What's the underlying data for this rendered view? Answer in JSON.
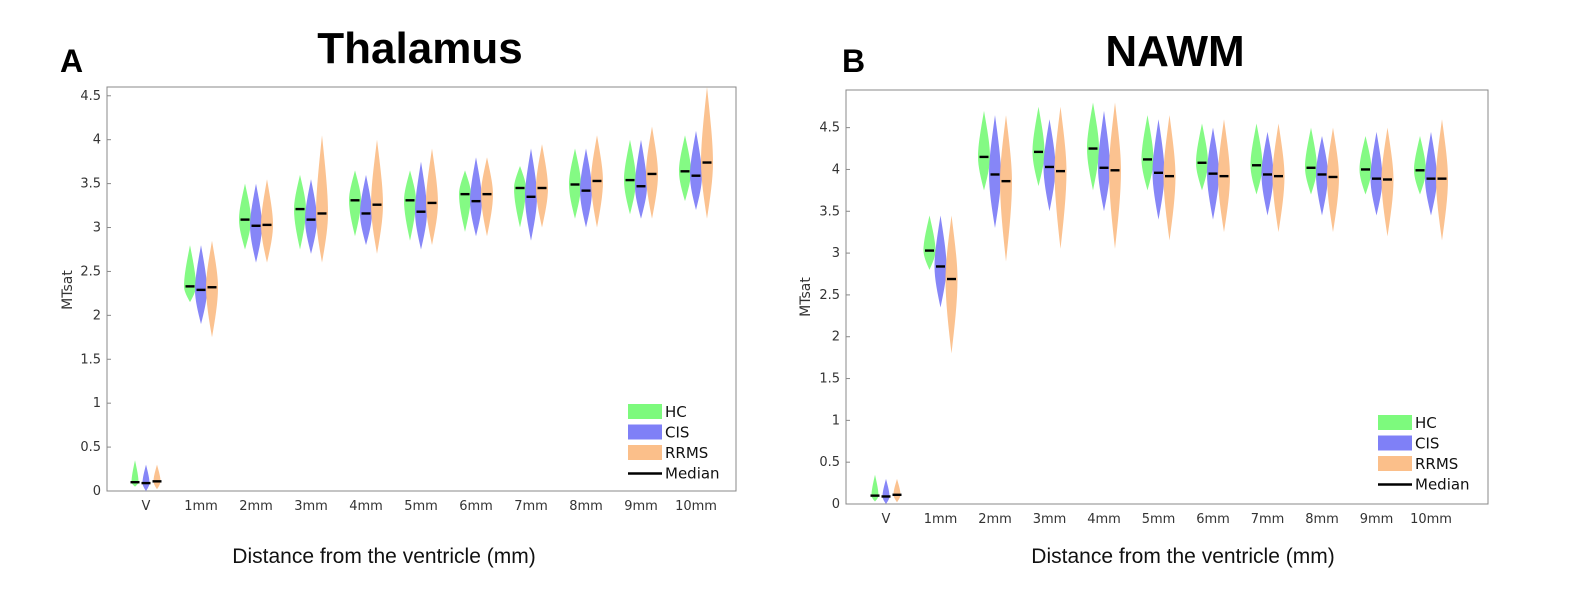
{
  "colors": {
    "HC": "#7dfa7d",
    "CIS": "#7f80f7",
    "RRMS": "#fbbf8a",
    "median": "#000000",
    "axis": "#888888"
  },
  "chart_data": [
    {
      "panel_letter": "A",
      "type": "violin",
      "title": "Thalamus",
      "xlabel": "Distance from the ventricle (mm)",
      "ylabel": "MTsat",
      "ylim": [
        0,
        4.6
      ],
      "yticks": [
        "0",
        "0.5",
        "1",
        "1.5",
        "2",
        "2.5",
        "3",
        "3.5",
        "4",
        "4.5"
      ],
      "categories": [
        "V",
        "1mm",
        "2mm",
        "3mm",
        "4mm",
        "5mm",
        "6mm",
        "7mm",
        "8mm",
        "9mm",
        "10mm"
      ],
      "legend": {
        "position": "bottom-right",
        "entries": [
          "HC",
          "CIS",
          "RRMS",
          "Median"
        ]
      },
      "series": [
        {
          "name": "HC",
          "median": [
            0.1,
            2.33,
            3.09,
            3.21,
            3.31,
            3.31,
            3.38,
            3.45,
            3.49,
            3.54,
            3.64
          ],
          "min": [
            0.05,
            2.15,
            2.75,
            2.75,
            2.9,
            2.85,
            2.95,
            3.0,
            3.1,
            3.15,
            3.3
          ],
          "max": [
            0.35,
            2.8,
            3.5,
            3.6,
            3.65,
            3.65,
            3.65,
            3.7,
            3.9,
            4.0,
            4.05
          ]
        },
        {
          "name": "CIS",
          "median": [
            0.09,
            2.29,
            3.02,
            3.09,
            3.16,
            3.18,
            3.3,
            3.35,
            3.42,
            3.47,
            3.59
          ],
          "min": [
            0.0,
            1.9,
            2.6,
            2.7,
            2.8,
            2.75,
            2.9,
            2.85,
            3.0,
            3.1,
            3.2
          ],
          "max": [
            0.3,
            2.8,
            3.5,
            3.55,
            3.6,
            3.75,
            3.8,
            3.9,
            3.9,
            4.0,
            4.1
          ]
        },
        {
          "name": "RRMS",
          "median": [
            0.11,
            2.32,
            3.03,
            3.16,
            3.26,
            3.28,
            3.38,
            3.45,
            3.53,
            3.61,
            3.74
          ],
          "min": [
            0.02,
            1.75,
            2.6,
            2.6,
            2.7,
            2.8,
            2.9,
            3.0,
            3.0,
            3.1,
            3.1
          ],
          "max": [
            0.3,
            2.85,
            3.55,
            4.05,
            4.0,
            3.9,
            3.8,
            3.95,
            4.05,
            4.15,
            4.6
          ]
        }
      ]
    },
    {
      "panel_letter": "B",
      "type": "violin",
      "title": "NAWM",
      "xlabel": "Distance from the ventricle (mm)",
      "ylabel": "MTsat",
      "ylim": [
        0,
        4.95
      ],
      "yticks": [
        "0",
        "0.5",
        "1",
        "1.5",
        "2",
        "2.5",
        "3",
        "3.5",
        "4",
        "4.5"
      ],
      "categories": [
        "V",
        "1mm",
        "2mm",
        "3mm",
        "4mm",
        "5mm",
        "6mm",
        "7mm",
        "8mm",
        "9mm",
        "10mm"
      ],
      "legend": {
        "position": "bottom-right",
        "entries": [
          "HC",
          "CIS",
          "RRMS",
          "Median"
        ]
      },
      "series": [
        {
          "name": "HC",
          "median": [
            0.1,
            3.03,
            4.15,
            4.21,
            4.25,
            4.12,
            4.08,
            4.05,
            4.02,
            4.0,
            3.99
          ],
          "min": [
            0.03,
            2.8,
            3.75,
            3.8,
            3.75,
            3.75,
            3.75,
            3.7,
            3.7,
            3.7,
            3.7
          ],
          "max": [
            0.35,
            3.45,
            4.7,
            4.75,
            4.8,
            4.65,
            4.55,
            4.55,
            4.5,
            4.4,
            4.4
          ]
        },
        {
          "name": "CIS",
          "median": [
            0.09,
            2.84,
            3.94,
            4.03,
            4.02,
            3.96,
            3.95,
            3.94,
            3.94,
            3.89,
            3.89
          ],
          "min": [
            0.0,
            2.35,
            3.3,
            3.5,
            3.5,
            3.4,
            3.4,
            3.45,
            3.45,
            3.45,
            3.45
          ],
          "max": [
            0.3,
            3.45,
            4.65,
            4.6,
            4.7,
            4.6,
            4.5,
            4.45,
            4.4,
            4.45,
            4.45
          ]
        },
        {
          "name": "RRMS",
          "median": [
            0.11,
            2.69,
            3.86,
            3.98,
            3.99,
            3.92,
            3.92,
            3.92,
            3.91,
            3.88,
            3.89
          ],
          "min": [
            0.02,
            1.8,
            2.9,
            3.05,
            3.05,
            3.15,
            3.25,
            3.25,
            3.25,
            3.2,
            3.15
          ],
          "max": [
            0.3,
            3.45,
            4.65,
            4.75,
            4.8,
            4.65,
            4.6,
            4.55,
            4.5,
            4.5,
            4.6
          ]
        }
      ]
    }
  ]
}
